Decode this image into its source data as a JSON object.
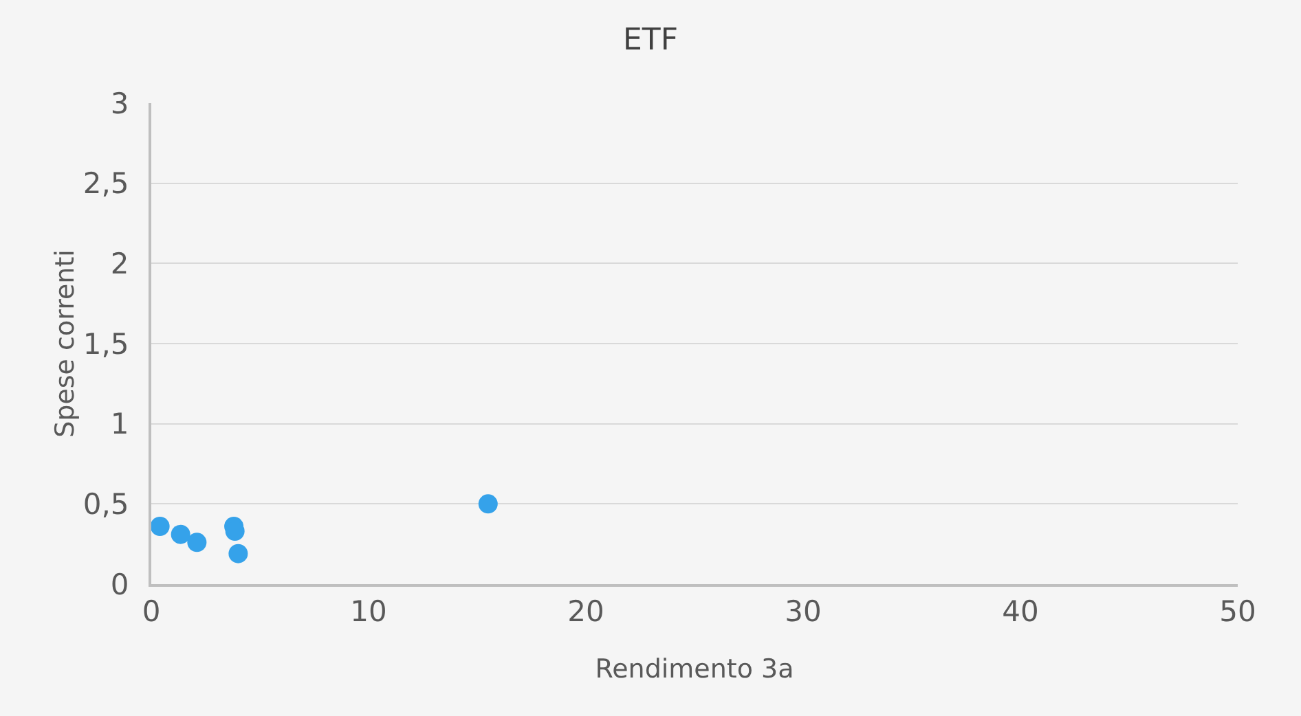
{
  "chart_data": {
    "type": "scatter",
    "title": "ETF",
    "xlabel": "Rendimento 3a",
    "ylabel": "Spese correnti",
    "x": [
      0.4,
      1.35,
      2.1,
      3.8,
      3.85,
      4.0,
      15.5
    ],
    "values": [
      0.36,
      0.31,
      0.26,
      0.36,
      0.33,
      0.19,
      0.5
    ],
    "color": "#35a2ea",
    "marker": "circle",
    "xlim": [
      0,
      50
    ],
    "xticks": [
      0,
      10,
      20,
      30,
      40,
      50
    ],
    "ylim": [
      0,
      3
    ],
    "yticks": [
      0,
      {
        "value": 0.5,
        "label": "0,5"
      },
      1,
      {
        "value": 1.5,
        "label": "1,5"
      },
      2,
      {
        "value": 2.5,
        "label": "2,5"
      },
      3
    ],
    "grid": "y",
    "legend": false
  }
}
